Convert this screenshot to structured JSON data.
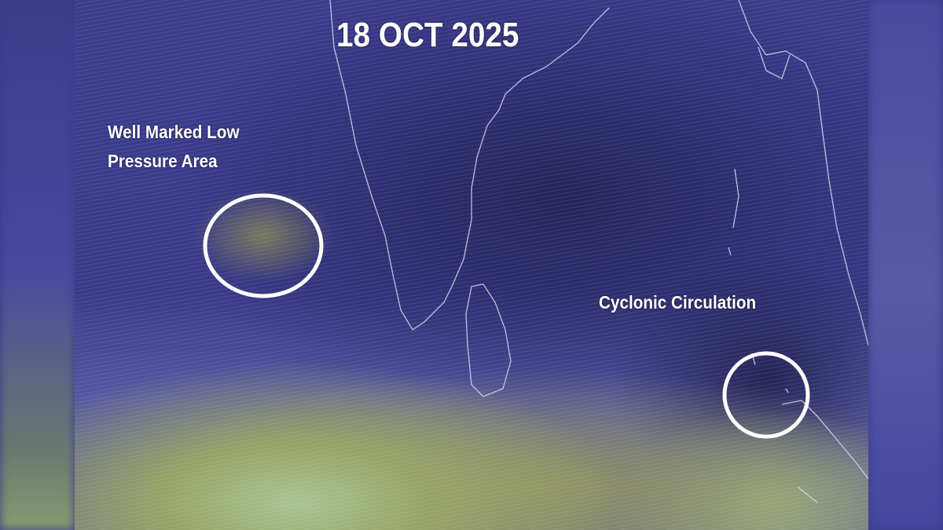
{
  "map": {
    "date": "18 OCT 2025",
    "annotations": [
      {
        "label_line1": "Well Marked Low",
        "label_line2": "Pressure Area",
        "marker": "white-ellipse"
      },
      {
        "label": "Cyclonic Circulation",
        "marker": "white-circle"
      }
    ],
    "colors": {
      "low_wind": "#2a2a66",
      "medium_wind": "#4a4aa0",
      "high_wind": "#98a466",
      "strong_wind": "#a9c494",
      "coastline": "#d8d8f0",
      "marker": "#ffffff"
    }
  }
}
